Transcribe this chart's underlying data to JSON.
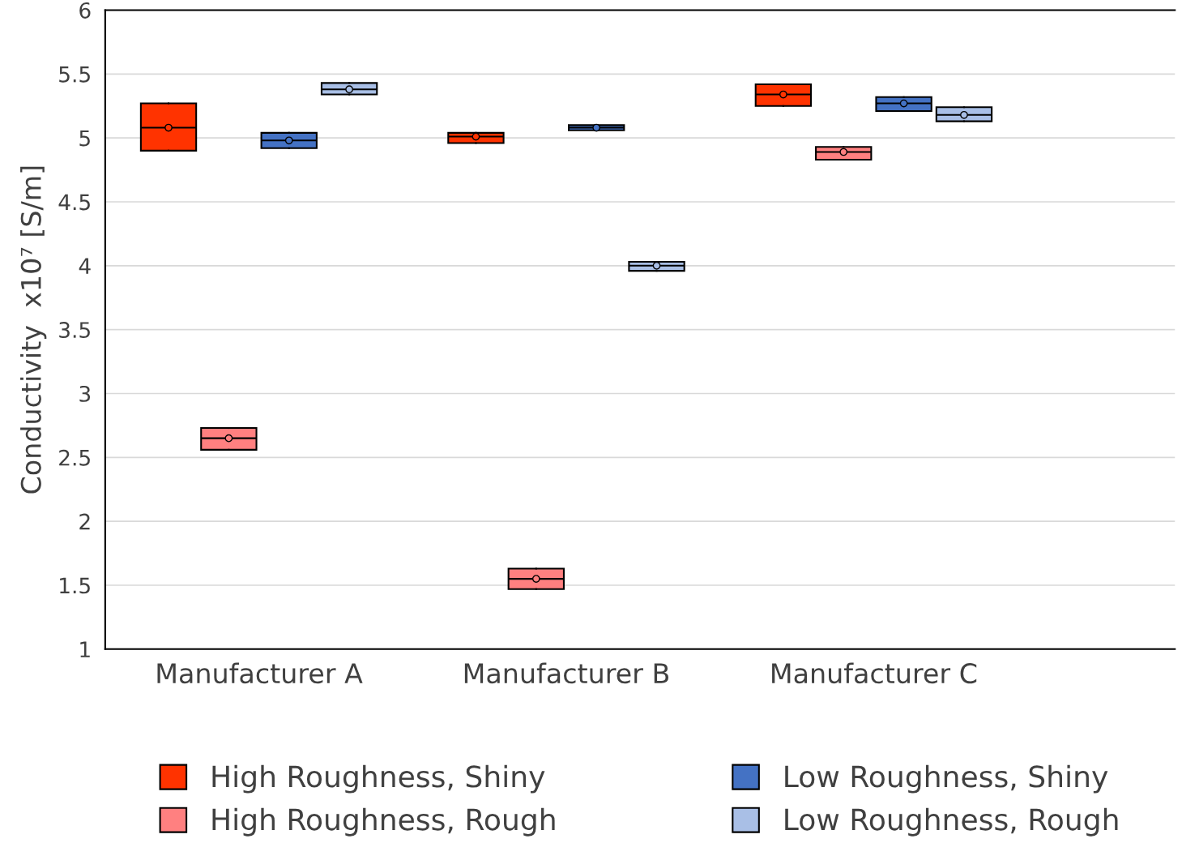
{
  "chart_data": {
    "type": "box",
    "ylabel": "Conductivity  x10⁷ [S/m]",
    "categories": [
      "Manufacturer A",
      "Manufacturer B",
      "Manufacturer C"
    ],
    "ylim": [
      1,
      6
    ],
    "yticks": [
      1,
      1.5,
      2,
      2.5,
      3,
      3.5,
      4,
      4.5,
      5,
      5.5,
      6
    ],
    "grid": "y",
    "legend": "bottom",
    "marker": "circle",
    "series": [
      {
        "name": "High Roughness, Shiny",
        "color": "#ff3300",
        "boxes": [
          {
            "low": 4.9,
            "q1": 4.9,
            "median": 5.08,
            "q3": 5.27,
            "high": 5.27,
            "mean": 5.08
          },
          {
            "low": 4.96,
            "q1": 4.96,
            "median": 5.01,
            "q3": 5.04,
            "high": 5.04,
            "mean": 5.01
          },
          {
            "low": 5.25,
            "q1": 5.25,
            "median": 5.34,
            "q3": 5.42,
            "high": 5.42,
            "mean": 5.34
          }
        ]
      },
      {
        "name": "High Roughness, Rough",
        "color": "#ff8080",
        "boxes": [
          {
            "low": 2.56,
            "q1": 2.56,
            "median": 2.65,
            "q3": 2.73,
            "high": 2.73,
            "mean": 2.65
          },
          {
            "low": 1.47,
            "q1": 1.47,
            "median": 1.55,
            "q3": 1.63,
            "high": 1.63,
            "mean": 1.55
          },
          {
            "low": 4.83,
            "q1": 4.83,
            "median": 4.89,
            "q3": 4.93,
            "high": 4.93,
            "mean": 4.89
          }
        ]
      },
      {
        "name": "Low Roughness, Shiny",
        "color": "#4472c4",
        "boxes": [
          {
            "low": 4.92,
            "q1": 4.92,
            "median": 4.98,
            "q3": 5.04,
            "high": 5.04,
            "mean": 4.98
          },
          {
            "low": 5.06,
            "q1": 5.06,
            "median": 5.08,
            "q3": 5.1,
            "high": 5.1,
            "mean": 5.08
          },
          {
            "low": 5.21,
            "q1": 5.21,
            "median": 5.27,
            "q3": 5.32,
            "high": 5.32,
            "mean": 5.27
          }
        ]
      },
      {
        "name": "Low Roughness, Rough",
        "color": "#a9bfe6",
        "boxes": [
          {
            "low": 5.34,
            "q1": 5.34,
            "median": 5.38,
            "q3": 5.43,
            "high": 5.43,
            "mean": 5.38
          },
          {
            "low": 3.96,
            "q1": 3.96,
            "median": 4.0,
            "q3": 4.03,
            "high": 4.03,
            "mean": 4.0
          },
          {
            "low": 5.13,
            "q1": 5.13,
            "median": 5.18,
            "q3": 5.24,
            "high": 5.24,
            "mean": 5.18
          }
        ]
      }
    ]
  }
}
